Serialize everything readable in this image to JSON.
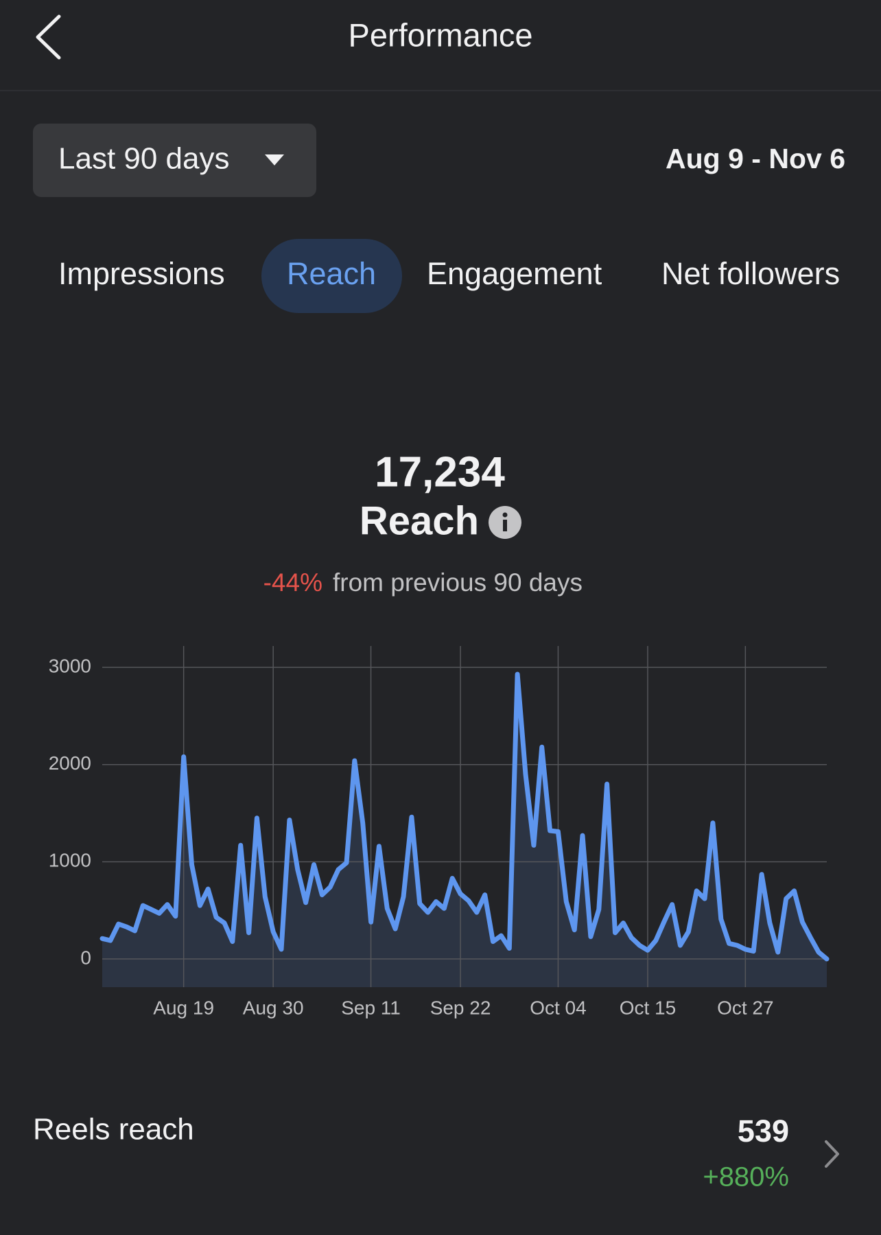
{
  "header": {
    "title": "Performance"
  },
  "filter": {
    "period": "Last 90 days",
    "date_range": "Aug 9 - Nov 6"
  },
  "tabs": [
    "Impressions",
    "Reach",
    "Engagement",
    "Net followers"
  ],
  "summary": {
    "value": "17,234",
    "label": "Reach",
    "change": "-44%",
    "change_text": "from previous 90 days"
  },
  "chart_data": {
    "type": "line",
    "color": "#5e96ef",
    "fill": "#2c3443",
    "grid": true,
    "values": [
      210,
      190,
      360,
      330,
      290,
      550,
      510,
      470,
      560,
      440,
      2080,
      970,
      550,
      720,
      430,
      370,
      180,
      1170,
      270,
      1450,
      640,
      280,
      100,
      1430,
      920,
      580,
      970,
      660,
      740,
      920,
      990,
      2040,
      1400,
      380,
      1160,
      520,
      310,
      640,
      1460,
      570,
      480,
      590,
      520,
      830,
      670,
      600,
      480,
      660,
      180,
      240,
      110,
      2930,
      1900,
      1170,
      2180,
      1320,
      1310,
      590,
      300,
      1270,
      230,
      510,
      1800,
      270,
      370,
      220,
      140,
      90,
      190,
      380,
      560,
      140,
      280,
      700,
      620,
      1400,
      410,
      160,
      140,
      100,
      80,
      870,
      370,
      70,
      620,
      700,
      380,
      220,
      70,
      0
    ],
    "xlim": [
      0,
      89
    ],
    "xticks": [
      {
        "value": 10,
        "label": "Aug 19"
      },
      {
        "value": 21,
        "label": "Aug 30"
      },
      {
        "value": 33,
        "label": "Sep 11"
      },
      {
        "value": 44,
        "label": "Sep 22"
      },
      {
        "value": 56,
        "label": "Oct 04"
      },
      {
        "value": 67,
        "label": "Oct 15"
      },
      {
        "value": 79,
        "label": "Oct 27"
      }
    ],
    "ylim": [
      -290,
      3220
    ],
    "yticks": [
      0,
      1000,
      2000,
      3000
    ]
  },
  "reels": {
    "label": "Reels reach",
    "value": "539",
    "change": "+880%"
  }
}
